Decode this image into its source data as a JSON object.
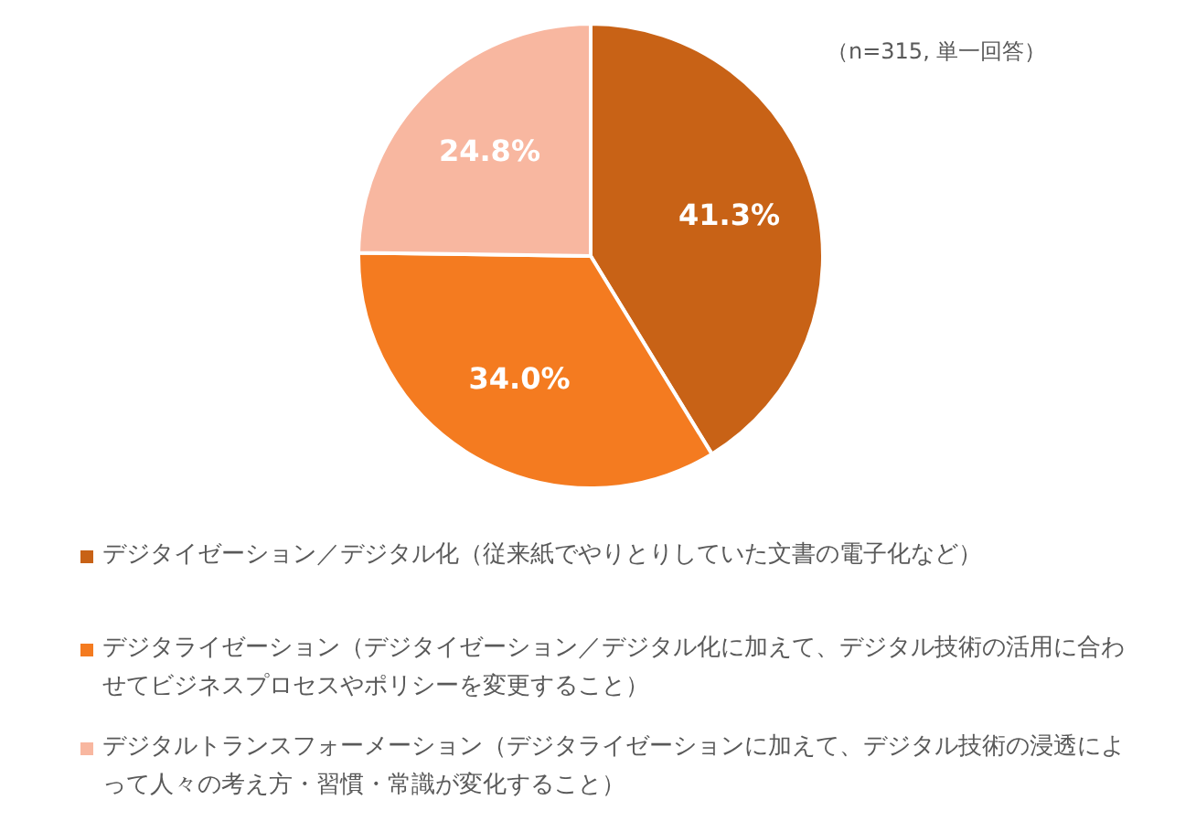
{
  "chart_data": {
    "type": "pie",
    "categories": [
      "デジタイゼーション／デジタル化（従来紙でやりとりしていた文書の電子化など）",
      "デジタライゼーション（デジタイゼーション／デジタル化に加えて、デジタル技術の活用に合わせてビジネスプロセスやポリシーを変更すること）",
      "デジタルトランスフォーメーション（デジタライゼーションに加えて、デジタル技術の浸透によって人々の考え方・習慣・常識が変化すること）"
    ],
    "values": [
      41.3,
      34.0,
      24.8
    ],
    "value_labels": [
      "41.3%",
      "34.0%",
      "24.8%"
    ],
    "colors": [
      "#c86216",
      "#f47b20",
      "#f8b7a0"
    ],
    "annotations": [
      "（n=315, 単一回答）"
    ],
    "legend": "bottom"
  }
}
